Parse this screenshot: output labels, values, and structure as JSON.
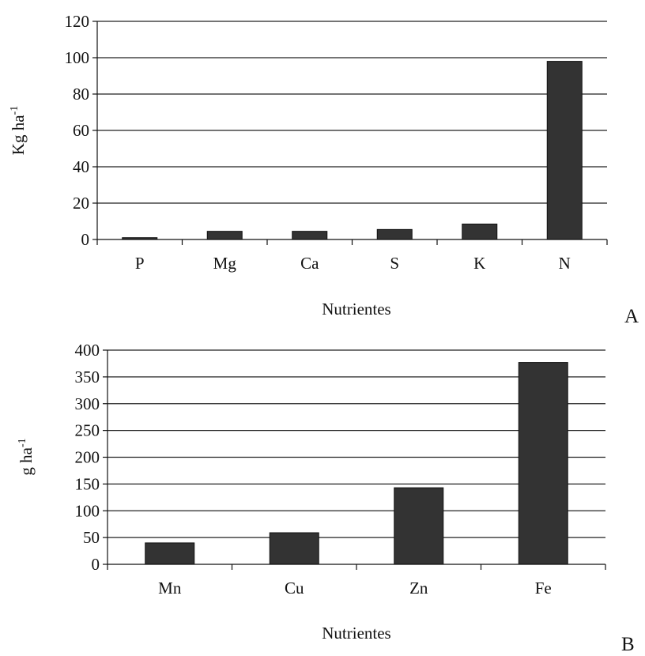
{
  "colors": {
    "bar_fill": "#333333",
    "bar_stroke": "#111111",
    "grid": "#222222",
    "axis": "#111111",
    "text": "#111111",
    "background": "#ffffff"
  },
  "chart_data": [
    {
      "type": "bar",
      "panel_label": "A",
      "categories": [
        "P",
        "Mg",
        "Ca",
        "S",
        "K",
        "N"
      ],
      "values": [
        1,
        4.5,
        4.5,
        5.5,
        8.5,
        98
      ],
      "title": "",
      "xlabel": "Nutrientes",
      "ylabel": "Kg ha",
      "ylabel_sup": "-1",
      "ylim": [
        0,
        120
      ],
      "yticks": [
        0,
        20,
        40,
        60,
        80,
        100,
        120
      ],
      "ytick_labels": [
        "0",
        "20",
        "40",
        "60",
        "80",
        "100",
        "120"
      ],
      "grid": true,
      "legend": "none"
    },
    {
      "type": "bar",
      "panel_label": "B",
      "categories": [
        "Mn",
        "Cu",
        "Zn",
        "Fe"
      ],
      "values": [
        40,
        59,
        143,
        377
      ],
      "title": "",
      "xlabel": "Nutrientes",
      "ylabel": "g ha",
      "ylabel_sup": "-1",
      "ylim": [
        0,
        400
      ],
      "yticks": [
        0,
        50,
        100,
        150,
        200,
        250,
        300,
        350,
        400
      ],
      "ytick_labels": [
        "0",
        "50",
        "100",
        "150",
        "200",
        "250",
        "300",
        "350",
        "400"
      ],
      "grid": true,
      "legend": "none"
    }
  ]
}
